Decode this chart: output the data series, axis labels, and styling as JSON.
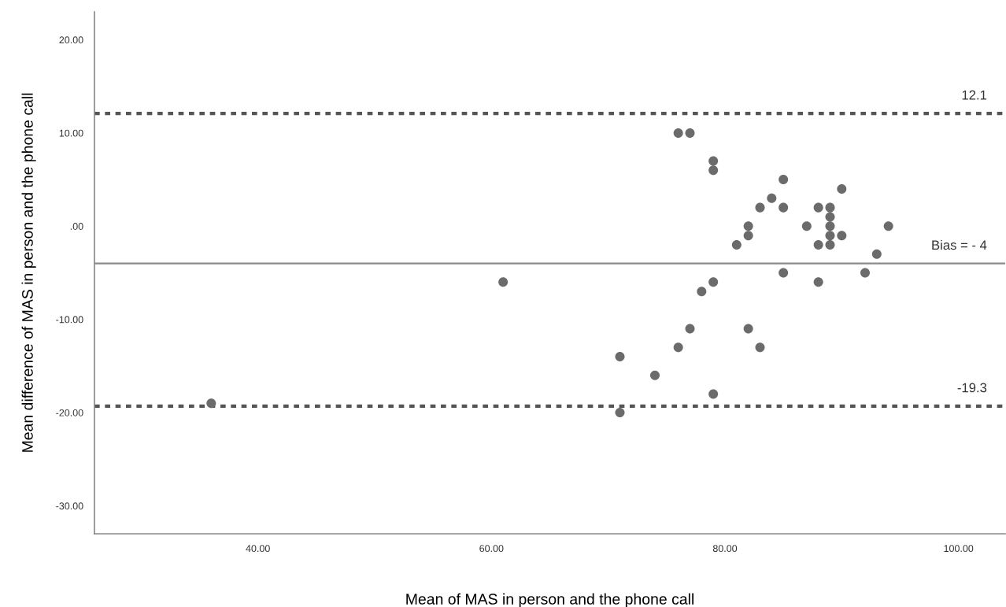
{
  "chart_data": {
    "type": "scatter",
    "xlabel": "Mean of MAS in person and the phone call",
    "ylabel": "Mean difference of MAS in person and the phone call",
    "x": [
      36,
      61,
      71,
      71,
      74,
      76,
      76,
      77,
      77,
      78,
      79,
      79,
      79,
      79,
      81,
      82,
      82,
      82,
      83,
      83,
      84,
      85,
      85,
      85,
      87,
      88,
      88,
      88,
      89,
      89,
      89,
      89,
      89,
      90,
      90,
      92,
      93,
      94
    ],
    "values": [
      -19,
      -6,
      -14,
      -20,
      -16,
      -13,
      10,
      10,
      -11,
      -7,
      7,
      6,
      -6,
      -18,
      -2,
      0,
      -1,
      -11,
      2,
      -13,
      3,
      5,
      2,
      -5,
      0,
      2,
      -2,
      -6,
      2,
      1,
      0,
      -1,
      -2,
      4,
      -1,
      -5,
      -3,
      0
    ],
    "color": "#6b6b6b",
    "marker": "circle",
    "xlim": [
      26,
      104
    ],
    "ylim": [
      -33,
      23
    ],
    "xticks": [
      {
        "value": 40,
        "label": "40.00"
      },
      {
        "value": 60,
        "label": "60.00"
      },
      {
        "value": 80,
        "label": "80.00"
      },
      {
        "value": 100,
        "label": "100.00"
      }
    ],
    "yticks": [
      {
        "value": -30,
        "label": "-30.00"
      },
      {
        "value": -20,
        "label": "-20.00"
      },
      {
        "value": -10,
        "label": "-10.00"
      },
      {
        "value": 0,
        "label": ".00"
      },
      {
        "value": 10,
        "label": "10.00"
      },
      {
        "value": 20,
        "label": "20.00"
      }
    ],
    "ref_lines": [
      {
        "axis": "y",
        "value": 12.1,
        "label": "12.1",
        "color": "#555555",
        "line_style": "dotted"
      },
      {
        "axis": "y",
        "value": -4,
        "label": "Bias = - 4",
        "color": "#8a8a8a",
        "line_style": "solid"
      },
      {
        "axis": "y",
        "value": -19.3,
        "label": "-19.3",
        "color": "#555555",
        "line_style": "dotted"
      }
    ],
    "grid": false,
    "legend": false
  }
}
